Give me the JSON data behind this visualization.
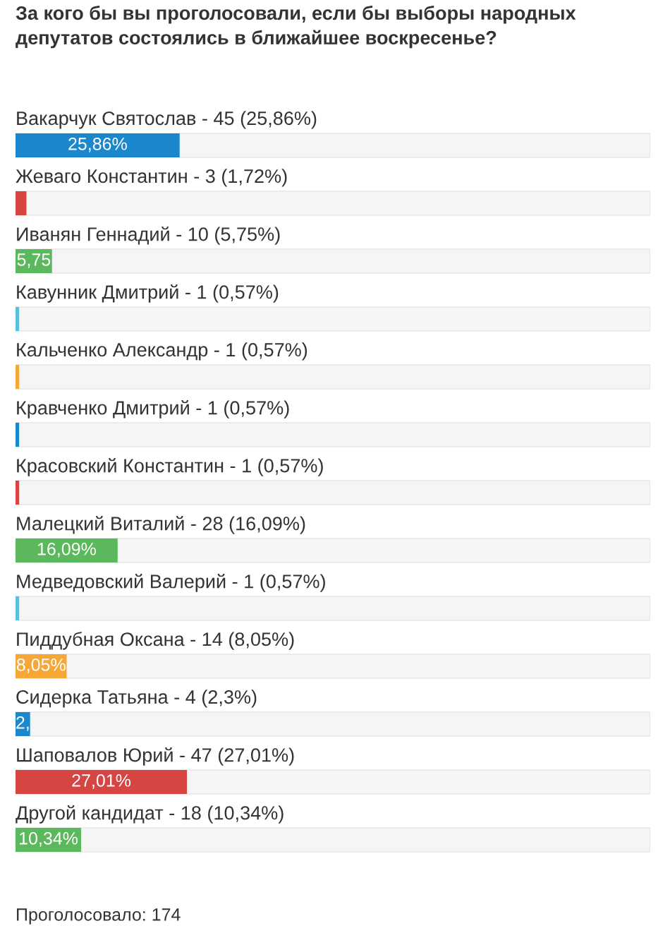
{
  "chart_data": {
    "type": "bar",
    "orientation": "horizontal",
    "title": "За кого бы вы проголосовали, если бы выборы народных депутатов состоялись в ближайшее воскресенье?",
    "categories": [
      "Вакарчук Святослав - 45 (25,86%)",
      "Жеваго Константин - 3 (1,72%)",
      "Иванян Геннадий - 10 (5,75%)",
      "Кавунник Дмитрий - 1 (0,57%)",
      "Кальченко Александр - 1 (0,57%)",
      "Кравченко Дмитрий - 1 (0,57%)",
      "Красовский Константин - 1 (0,57%)",
      "Малецкий Виталий - 28 (16,09%)",
      "Медведовский Валерий - 1 (0,57%)",
      "Пиддубная Оксана - 14 (8,05%)",
      "Сидерка Татьяна - 4 (2,3%)",
      "Шаповалов Юрий - 47 (27,01%)",
      "Другой кандидат - 18 (10,34%)"
    ],
    "values": [
      25.86,
      1.72,
      5.75,
      0.57,
      0.57,
      0.57,
      0.57,
      16.09,
      0.57,
      8.05,
      2.3,
      27.01,
      10.34
    ],
    "colors": [
      "#1b87cd",
      "#d64541",
      "#5cb85c",
      "#5bc0de",
      "#f7a738",
      "#1b87cd",
      "#d64541",
      "#5cb85c",
      "#5bc0de",
      "#f7a738",
      "#1b87cd",
      "#d64541",
      "#5cb85c"
    ],
    "value_labels": [
      "25,86%",
      null,
      "5,75",
      null,
      null,
      null,
      null,
      "16,09%",
      null,
      "8,05%",
      "2,",
      "27,01%",
      "10,34%"
    ],
    "xlim": [
      0,
      100
    ],
    "tick_labels": "y",
    "annotations": [
      "Проголосовало: 174"
    ]
  }
}
